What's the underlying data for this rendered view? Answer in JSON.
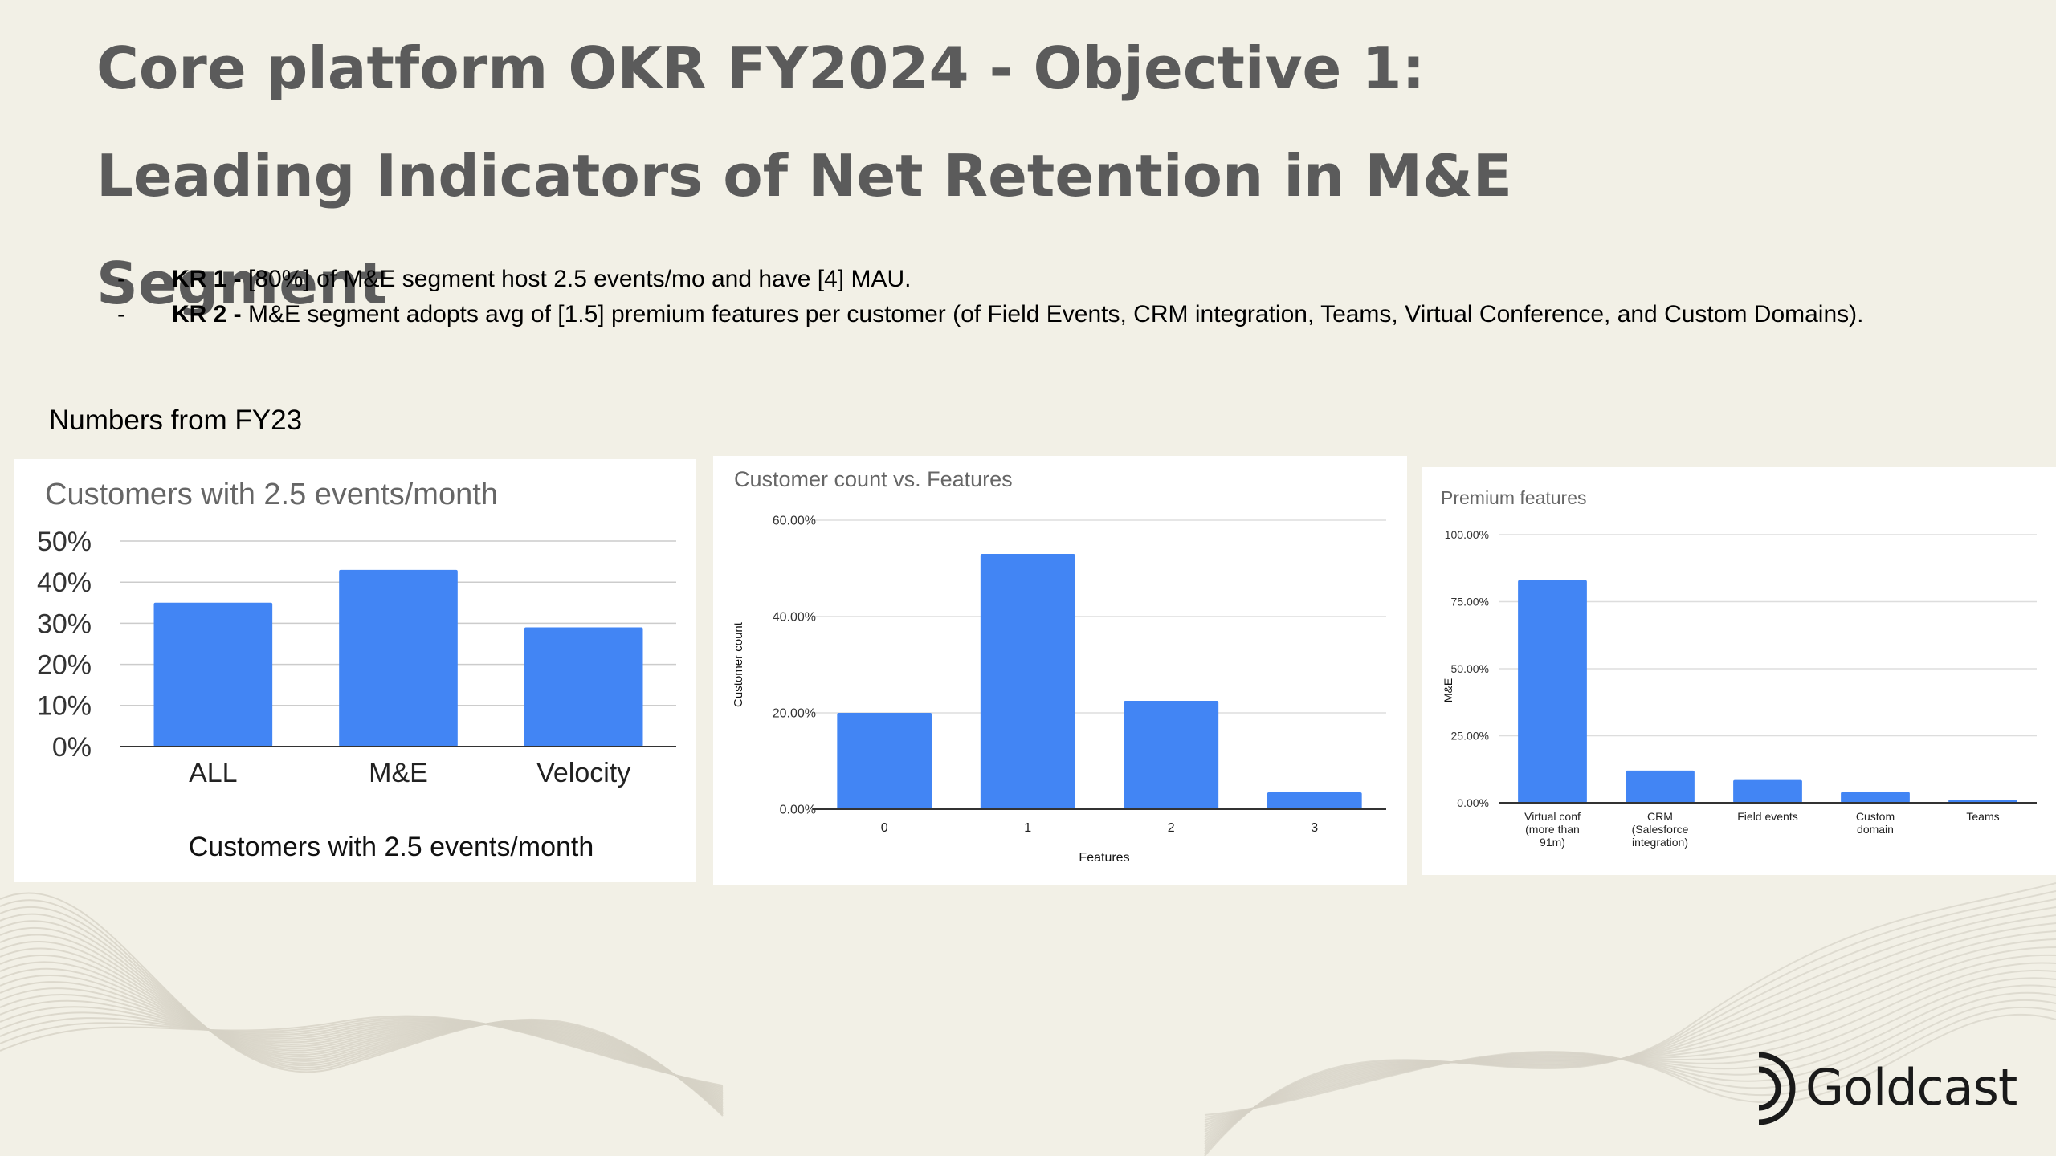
{
  "title": "Core platform OKR FY2024 - Objective 1: Leading Indicators of Net Retention in M&E Segment",
  "key_results": [
    {
      "bullet": "-",
      "label": "KR 1 -",
      "text": " [80%] of M&E segment host 2.5 events/mo and have [4] MAU."
    },
    {
      "bullet": "-",
      "label": "KR 2 -",
      "text": " M&E segment adopts avg of [1.5] premium features per customer (of Field Events, CRM integration, Teams, Virtual Conference, and Custom Domains)."
    }
  ],
  "numbers_label": "Numbers from FY23",
  "logo": {
    "text": "Goldcast",
    "icon": "goldcast-logo-icon"
  },
  "colors": {
    "bar": "#4285f4",
    "background": "#f2f0e6",
    "title": "#5b5b5b"
  },
  "chart_data": [
    {
      "type": "bar",
      "title": "Customers with 2.5 events/month",
      "xlabel": "Customers with 2.5 events/month",
      "ylabel": "",
      "categories": [
        "ALL",
        "M&E",
        "Velocity"
      ],
      "values": [
        35,
        43,
        29
      ],
      "ylim": [
        0,
        50
      ],
      "yticks": [
        "0%",
        "10%",
        "20%",
        "30%",
        "40%",
        "50%"
      ],
      "grid": true
    },
    {
      "type": "bar",
      "title": "Customer count vs. Features",
      "xlabel": "Features",
      "ylabel": "Customer count",
      "categories": [
        "0",
        "1",
        "2",
        "3"
      ],
      "values": [
        20,
        53,
        22.5,
        3.5
      ],
      "ylim": [
        0,
        60
      ],
      "yticks": [
        "0.00%",
        "20.00%",
        "40.00%",
        "60.00%"
      ],
      "grid": true
    },
    {
      "type": "bar",
      "title": "Premium features",
      "xlabel": "",
      "ylabel": "M&E",
      "categories": [
        [
          "Virtual conf",
          "(more than",
          "91m)"
        ],
        [
          "CRM",
          "(Salesforce",
          "integration)"
        ],
        [
          "Field events"
        ],
        [
          "Custom",
          "domain"
        ],
        [
          "Teams"
        ]
      ],
      "values": [
        83,
        12,
        8.5,
        4,
        1.2
      ],
      "ylim": [
        0,
        100
      ],
      "yticks": [
        "0.00%",
        "25.00%",
        "50.00%",
        "75.00%",
        "100.00%"
      ],
      "grid": true
    }
  ]
}
